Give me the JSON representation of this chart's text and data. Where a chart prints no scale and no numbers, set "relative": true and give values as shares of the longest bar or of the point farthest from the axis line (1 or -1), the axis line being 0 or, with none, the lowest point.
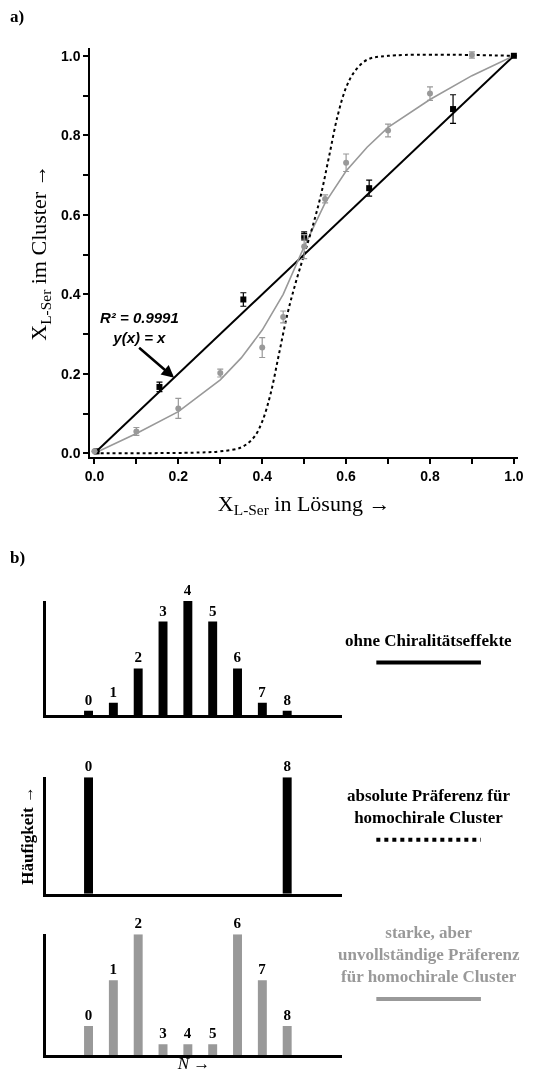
{
  "chart_data": [
    {
      "type": "scatter",
      "title": "a)",
      "xlabel": "X$_{L-Ser}$ in Lösung →",
      "ylabel": "X$_{L-Ser}$ im Cluster →",
      "xlim": [
        -0.01,
        1.01
      ],
      "ylim": [
        -0.01,
        1.02
      ],
      "xticks": [
        {
          "value": 0,
          "label": "0.0"
        },
        {
          "value": 0.1,
          "label": null
        },
        {
          "value": 0.2,
          "label": "0.2"
        },
        {
          "value": 0.3,
          "label": null
        },
        {
          "value": 0.4,
          "label": "0.4"
        },
        {
          "value": 0.5,
          "label": null
        },
        {
          "value": 0.6,
          "label": "0.6"
        },
        {
          "value": 0.7,
          "label": null
        },
        {
          "value": 0.8,
          "label": "0.8"
        },
        {
          "value": 0.9,
          "label": null
        },
        {
          "value": 1,
          "label": "1.0"
        }
      ],
      "yticks": [
        {
          "value": 0,
          "label": "0.0"
        },
        {
          "value": 0.1,
          "label": null
        },
        {
          "value": 0.2,
          "label": "0.2"
        },
        {
          "value": 0.3,
          "label": null
        },
        {
          "value": 0.4,
          "label": "0.4"
        },
        {
          "value": 0.5,
          "label": null
        },
        {
          "value": 0.6,
          "label": "0.6"
        },
        {
          "value": 0.7,
          "label": null
        },
        {
          "value": 0.8,
          "label": "0.8"
        },
        {
          "value": 0.9,
          "label": null
        },
        {
          "value": 1,
          "label": "1.0"
        }
      ],
      "annotations": [
        {
          "text": "R² = 0.9991\ny(x) = x",
          "x": 0.19,
          "y": 0.19
        }
      ],
      "series": [
        {
          "type": "line",
          "color": "#000000",
          "line_style": "solid",
          "marker": "none",
          "x": [
            0,
            1
          ],
          "values": [
            0,
            1
          ]
        },
        {
          "type": "line",
          "color": "#999999",
          "line_style": "solid",
          "marker": "none",
          "x": [
            0,
            0.1,
            0.2,
            0.3,
            0.35,
            0.4,
            0.45,
            0.5,
            0.55,
            0.6,
            0.65,
            0.7,
            0.8,
            0.9,
            1.0
          ],
          "values": [
            0,
            0.05,
            0.105,
            0.185,
            0.24,
            0.31,
            0.4,
            0.52,
            0.63,
            0.71,
            0.77,
            0.82,
            0.89,
            0.95,
            1.0
          ]
        },
        {
          "type": "line",
          "color": "#000000",
          "line_style": "dotted",
          "marker": "none",
          "x": [
            0,
            0.25,
            0.3,
            0.35,
            0.38,
            0.4,
            0.42,
            0.44,
            0.46,
            0.48,
            0.5,
            0.52,
            0.54,
            0.56,
            0.58,
            0.6,
            0.62,
            0.65,
            0.7,
            1.0
          ],
          "values": [
            0,
            0.002,
            0.005,
            0.015,
            0.04,
            0.08,
            0.15,
            0.25,
            0.35,
            0.43,
            0.5,
            0.57,
            0.65,
            0.75,
            0.85,
            0.92,
            0.96,
            0.99,
            1.0,
            1.0
          ]
        },
        {
          "type": "scatter",
          "color": "#000000",
          "marker": "square",
          "x": [
            0.005,
            0.155,
            0.355,
            0.5,
            0.655,
            0.855,
            1.0
          ],
          "values": [
            0.005,
            0.167,
            0.387,
            0.547,
            0.667,
            0.866,
            1.0
          ],
          "errors": [
            null,
            0.012,
            0.017,
            0.01,
            0.02,
            0.036,
            null
          ]
        },
        {
          "type": "scatter",
          "color": "#999999",
          "marker": "circle",
          "x": [
            0.0,
            0.1,
            0.2,
            0.3,
            0.4,
            0.45,
            0.5,
            0.55,
            0.6,
            0.7,
            0.8,
            0.9
          ],
          "values": [
            0.005,
            0.055,
            0.113,
            0.202,
            0.266,
            0.343,
            0.52,
            0.64,
            0.731,
            0.812,
            0.905,
            1.002
          ],
          "errors": [
            null,
            0.01,
            0.025,
            0.01,
            0.025,
            0.015,
            0.03,
            0.01,
            0.022,
            0.016,
            0.017,
            0.008
          ]
        }
      ]
    },
    {
      "type": "bar",
      "title": "b)",
      "relative": true,
      "legend": "right",
      "tick_labels": false,
      "categories": [
        "0",
        "1",
        "2",
        "3",
        "4",
        "5",
        "6",
        "7",
        "8"
      ],
      "series": [
        {
          "name": "ohne Chiralitätseffekte",
          "color": "#000000",
          "line_style": "solid",
          "values": [
            0.04,
            0.11,
            0.41,
            0.82,
            1,
            0.82,
            0.41,
            0.11,
            0.04
          ]
        }
      ]
    },
    {
      "type": "bar",
      "ylabel": "Häufigkeit →",
      "relative": true,
      "legend": "right",
      "tick_labels": false,
      "categories": [
        "0",
        null,
        null,
        null,
        null,
        null,
        null,
        null,
        "8"
      ],
      "series": [
        {
          "name": "absolute Präferenz für homochirale Cluster",
          "color": "#000000",
          "line_style": "dotted",
          "values": [
            1,
            0,
            0,
            0,
            0,
            0,
            0,
            0,
            1
          ]
        }
      ]
    },
    {
      "type": "bar",
      "xlabel": "N →",
      "relative": true,
      "legend": "right",
      "tick_labels": false,
      "categories": [
        "0",
        "1",
        "2",
        "3",
        "4",
        "5",
        "6",
        "7",
        "8"
      ],
      "series": [
        {
          "name": "starke, aber unvollständige Präferenz für homochirale Cluster",
          "color": "#999999",
          "line_style": "solid",
          "values": [
            0.24,
            0.62,
            1,
            0.09,
            0.09,
            0.09,
            1,
            0.62,
            0.24
          ]
        }
      ]
    }
  ]
}
